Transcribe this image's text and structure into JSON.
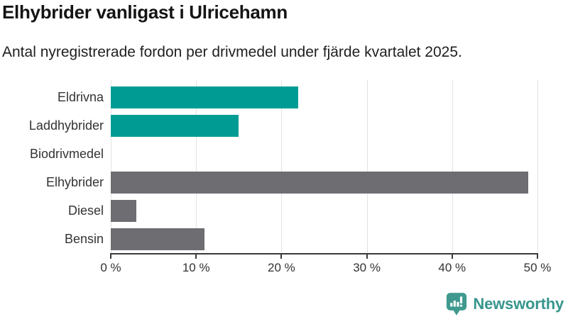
{
  "chart_data": {
    "type": "bar",
    "orientation": "horizontal",
    "title": "Elhybrider vanligast i Ulricehamn",
    "subtitle": "Antal nyregistrerade fordon per drivmedel under fjärde kvartalet 2025.",
    "categories": [
      "Eldrivna",
      "Laddhybrider",
      "Biodrivmedel",
      "Elhybrider",
      "Diesel",
      "Bensin"
    ],
    "values": [
      22,
      15,
      0,
      49,
      3,
      11
    ],
    "value_unit": "%",
    "xlim": [
      0,
      50
    ],
    "xtick_values": [
      0,
      10,
      20,
      30,
      40,
      50
    ],
    "xtick_labels": [
      "0 %",
      "10 %",
      "20 %",
      "30 %",
      "40 %",
      "50 %"
    ],
    "grid": true,
    "legend": false,
    "bar_colors": [
      "#009C94",
      "#009C94",
      "#6D6D72",
      "#6D6D72",
      "#6D6D72",
      "#6D6D72"
    ]
  },
  "style": {
    "highlight_color": "#009C94",
    "default_bar_color": "#6D6D72",
    "grid_color": "#e3e3e3",
    "axis_color": "#3a3a3a",
    "label_color": "#333333",
    "title_color": "#141414",
    "background": "#ffffff"
  },
  "branding": {
    "label": "Newsworthy",
    "icon": "newsworthy-bar-chart-bubble-icon",
    "icon_color": "#3F998F",
    "text_color": "#37968D"
  }
}
